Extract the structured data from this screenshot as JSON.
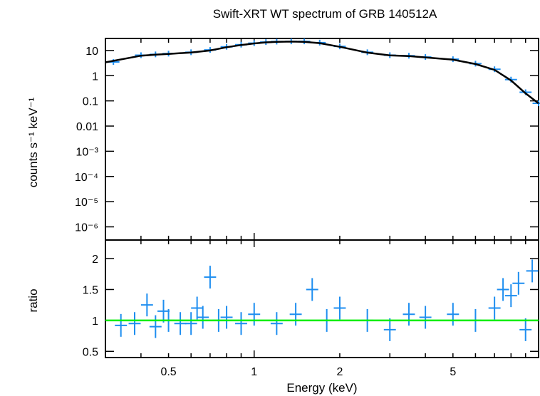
{
  "title": "Swift-XRT WT spectrum of GRB 140512A",
  "top_ylabel": "counts s⁻¹ keV⁻¹",
  "bottom_ylabel": "ratio",
  "xlabel": "Energy (keV)",
  "colors": {
    "data": "#1e8ef0",
    "model": "#000000",
    "unity": "#00ee00",
    "axes": "#000000"
  },
  "chart_data": [
    {
      "type": "scatter",
      "panel": "spectrum",
      "title": "Swift-XRT WT spectrum of GRB 140512A",
      "xlabel": "",
      "ylabel": "counts s⁻¹ keV⁻¹",
      "xscale": "log",
      "yscale": "log",
      "xlim": [
        0.3,
        10
      ],
      "ylim": [
        3e-07,
        30
      ],
      "ytick_labels": [
        "10",
        "1",
        "0.1",
        "0.01",
        "10⁻³",
        "10⁻⁴",
        "10⁻⁵",
        "10⁻⁶"
      ],
      "ytick_values": [
        10,
        1,
        0.1,
        0.01,
        0.001,
        0.0001,
        1e-05,
        1e-06
      ],
      "series": [
        {
          "name": "",
          "kind": "data-with-errors",
          "x": [
            0.32,
            0.4,
            0.45,
            0.5,
            0.6,
            0.7,
            0.8,
            0.9,
            1.0,
            1.1,
            1.2,
            1.35,
            1.5,
            1.7,
            2.0,
            2.5,
            3.0,
            3.5,
            4.0,
            5.0,
            6.0,
            7.0,
            8.0,
            9.0,
            10.0
          ],
          "y": [
            3.5,
            6.5,
            7.0,
            7.5,
            8.5,
            10.5,
            14.0,
            17.0,
            19.5,
            21.5,
            22.5,
            23.0,
            23.0,
            20.5,
            14.5,
            8.5,
            6.5,
            6.2,
            5.5,
            4.5,
            3.0,
            1.8,
            0.7,
            0.22,
            0.08
          ]
        },
        {
          "name": "",
          "kind": "model-step",
          "x": [
            0.3,
            0.4,
            0.45,
            0.5,
            0.6,
            0.7,
            0.8,
            0.9,
            1.0,
            1.1,
            1.2,
            1.35,
            1.5,
            1.7,
            2.0,
            2.5,
            3.0,
            3.5,
            4.0,
            5.0,
            6.0,
            7.0,
            8.0,
            9.0,
            10.0
          ],
          "y": [
            3.4,
            6.2,
            6.8,
            7.3,
            8.3,
            10.0,
            13.5,
            16.5,
            19.0,
            21.0,
            22.0,
            22.5,
            22.0,
            19.5,
            14.0,
            8.2,
            6.4,
            6.0,
            5.3,
            4.3,
            2.9,
            1.7,
            0.65,
            0.2,
            0.08
          ]
        }
      ]
    },
    {
      "type": "scatter",
      "panel": "ratio",
      "xlabel": "Energy (keV)",
      "ylabel": "ratio",
      "xscale": "log",
      "xlim": [
        0.3,
        10
      ],
      "ylim": [
        0.4,
        2.3
      ],
      "xtick_labels": [
        "0.5",
        "1",
        "2",
        "5"
      ],
      "xtick_values": [
        0.5,
        1,
        2,
        5
      ],
      "ytick_labels": [
        "0.5",
        "1",
        "1.5",
        "2"
      ],
      "ytick_values": [
        0.5,
        1,
        1.5,
        2
      ],
      "reference_line": 1,
      "series": [
        {
          "name": "",
          "kind": "data-with-errors",
          "x": [
            0.34,
            0.38,
            0.42,
            0.45,
            0.48,
            0.5,
            0.55,
            0.6,
            0.63,
            0.66,
            0.7,
            0.75,
            0.8,
            0.9,
            1.0,
            1.2,
            1.4,
            1.6,
            1.8,
            2.0,
            2.5,
            3.0,
            3.5,
            4.0,
            5.0,
            6.0,
            7.0,
            7.5,
            8.0,
            8.5,
            9.0,
            9.5
          ],
          "y": [
            0.92,
            0.95,
            1.25,
            0.9,
            1.15,
            1.0,
            0.95,
            0.95,
            1.2,
            1.05,
            1.7,
            1.0,
            1.05,
            0.95,
            1.1,
            0.95,
            1.1,
            1.5,
            1.0,
            1.2,
            1.0,
            0.85,
            1.1,
            1.05,
            1.1,
            1.0,
            1.2,
            1.5,
            1.4,
            1.6,
            0.85,
            1.8
          ]
        },
        {
          "name": "",
          "kind": "unity-line",
          "x": [
            0.3,
            10
          ],
          "y": [
            1,
            1
          ]
        }
      ]
    }
  ]
}
